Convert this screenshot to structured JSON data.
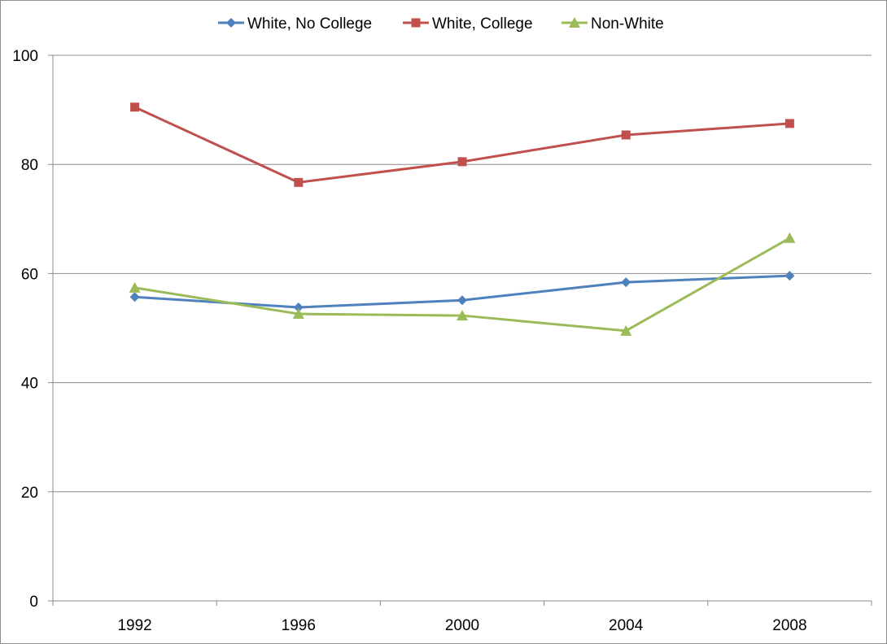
{
  "chart_data": {
    "type": "line",
    "title": "",
    "xlabel": "",
    "ylabel": "",
    "categories": [
      "1992",
      "1996",
      "2000",
      "2004",
      "2008"
    ],
    "ylim": [
      0,
      100
    ],
    "yticks": [
      0,
      20,
      40,
      60,
      80,
      100
    ],
    "grid": true,
    "legend_position": "top",
    "series": [
      {
        "name": "White, No College",
        "color": "#4f81bd",
        "marker": "diamond",
        "values": [
          55.7,
          53.8,
          55.1,
          58.4,
          59.6
        ]
      },
      {
        "name": "White, College",
        "color": "#c0504d",
        "marker": "square",
        "values": [
          90.5,
          76.7,
          80.5,
          85.4,
          87.5
        ]
      },
      {
        "name": "Non-White",
        "color": "#9bbb59",
        "marker": "triangle",
        "values": [
          57.4,
          52.6,
          52.3,
          49.5,
          66.5
        ]
      }
    ]
  }
}
